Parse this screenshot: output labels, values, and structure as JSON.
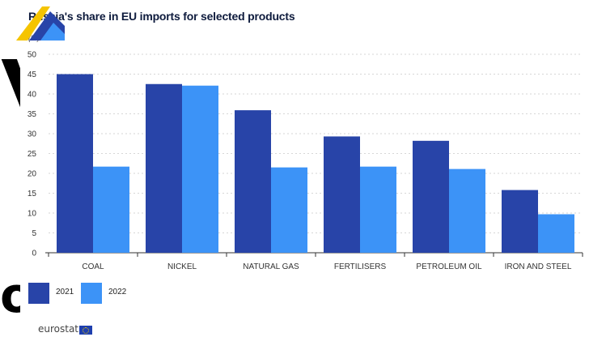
{
  "chart_data": {
    "type": "bar",
    "title": "Russia's share in EU imports for selected products",
    "ylabel": "(%)",
    "xlabel": "",
    "ylim": [
      0,
      50
    ],
    "yticks": [
      0,
      5,
      10,
      15,
      20,
      25,
      30,
      35,
      40,
      45,
      50
    ],
    "grid": true,
    "legend_position": "bottom-left",
    "categories": [
      "COAL",
      "NICKEL",
      "NATURAL GAS",
      "FERTILISERS",
      "PETROLEUM OIL",
      "IRON AND STEEL"
    ],
    "series": [
      {
        "name": "2021",
        "color": "#2844a8",
        "values": [
          45.0,
          42.5,
          35.9,
          29.3,
          28.2,
          15.8
        ]
      },
      {
        "name": "2022",
        "color": "#3c93f7",
        "values": [
          21.7,
          42.1,
          21.5,
          21.7,
          21.1,
          9.7
        ]
      }
    ]
  },
  "footer": {
    "logo_text": "eurostat"
  },
  "colors": {
    "title": "#0e1b3d",
    "grid": "#d6d6d6",
    "axis": "#333333"
  }
}
